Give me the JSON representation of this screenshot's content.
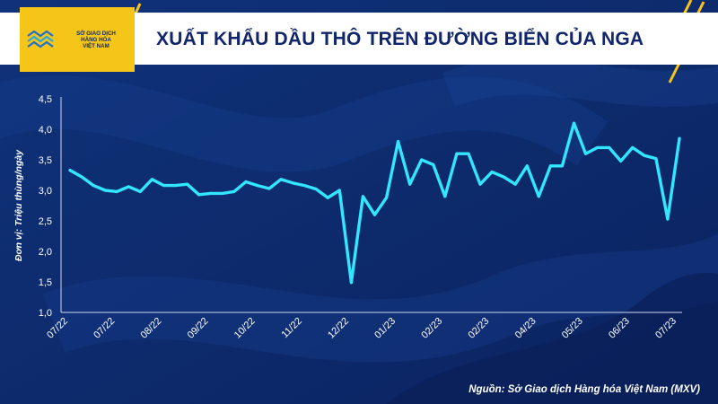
{
  "logo": {
    "line1": "SỞ GIAO DỊCH",
    "line2": "HÀNG HÓA",
    "line3": "VIỆT NAM"
  },
  "title": "XUẤT KHẨU DẦU THÔ TRÊN ĐƯỜNG BIỂN CỦA NGA",
  "source": "Nguồn: Sở Giao dịch Hàng hóa Việt Nam (MXV)",
  "colors": {
    "background": "#0d2a6b",
    "line": "#33e6ff",
    "accent": "#f5c518"
  },
  "chart_data": {
    "type": "line",
    "title": "XUẤT KHẨU DẦU THÔ TRÊN ĐƯỜNG BIỂN CỦA NGA",
    "xlabel": "",
    "ylabel": "Đơn vị: Triệu thùng/ngày",
    "ylim": [
      1.0,
      4.5
    ],
    "y_ticks": [
      "1,0",
      "1,5",
      "2,0",
      "2,5",
      "3,0",
      "3,5",
      "4,0",
      "4,5"
    ],
    "grid": false,
    "x_tick_labels": [
      "07/22",
      "07/22",
      "08/22",
      "09/22",
      "10/22",
      "11/22",
      "12/22",
      "01/23",
      "02/23",
      "02/23",
      "04/23",
      "05/23",
      "06/23",
      "07/23"
    ],
    "series": [
      {
        "values": [
          3.33,
          3.22,
          3.08,
          3.0,
          2.98,
          3.06,
          2.98,
          3.18,
          3.08,
          3.08,
          3.1,
          2.93,
          2.95,
          2.95,
          2.98,
          3.14,
          3.08,
          3.03,
          3.18,
          3.12,
          3.08,
          3.02,
          2.88,
          3.0,
          1.49,
          2.9,
          2.6,
          2.88,
          3.8,
          3.1,
          3.5,
          3.42,
          2.9,
          3.6,
          3.6,
          3.1,
          3.3,
          3.22,
          3.1,
          3.4,
          2.9,
          3.4,
          3.4,
          4.1,
          3.6,
          3.7,
          3.7,
          3.48,
          3.7,
          3.57,
          3.52,
          2.53,
          3.85
        ]
      }
    ]
  }
}
